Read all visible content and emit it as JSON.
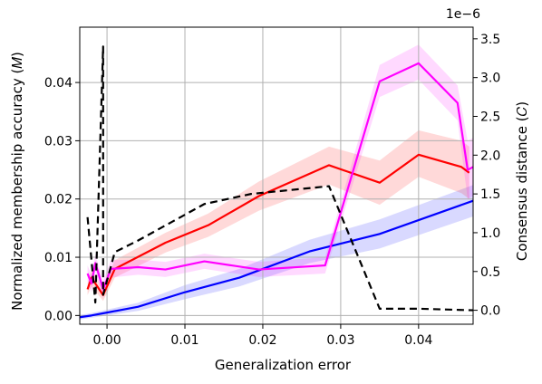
{
  "chart_data": {
    "type": "line",
    "xlabel": "Generalization error",
    "ylabel_left": "Normalized membership accuracy (𝑀)",
    "ylabel_right": "Consensus distance (𝐶)",
    "right_axis_multiplier": "1e−6",
    "xlim": [
      -0.0035,
      0.047
    ],
    "ylim_left": [
      -0.0015,
      0.0495
    ],
    "ylim_right": [
      -1.8e-07,
      3.65e-06
    ],
    "grid": true,
    "x_ticks": [
      {
        "v": 0.0,
        "label": "0.00"
      },
      {
        "v": 0.01,
        "label": "0.01"
      },
      {
        "v": 0.02,
        "label": "0.02"
      },
      {
        "v": 0.03,
        "label": "0.03"
      },
      {
        "v": 0.04,
        "label": "0.04"
      }
    ],
    "y_left_ticks": [
      {
        "v": 0.0,
        "label": "0.00"
      },
      {
        "v": 0.01,
        "label": "0.01"
      },
      {
        "v": 0.02,
        "label": "0.02"
      },
      {
        "v": 0.03,
        "label": "0.03"
      },
      {
        "v": 0.04,
        "label": "0.04"
      }
    ],
    "y_right_ticks": [
      {
        "v": 0.0,
        "label": "0.0"
      },
      {
        "v": 5e-07,
        "label": "0.5"
      },
      {
        "v": 1e-06,
        "label": "1.0"
      },
      {
        "v": 1.5e-06,
        "label": "1.5"
      },
      {
        "v": 2e-06,
        "label": "2.0"
      },
      {
        "v": 2.5e-06,
        "label": "2.5"
      },
      {
        "v": 3e-06,
        "label": "3.0"
      },
      {
        "v": 3.5e-06,
        "label": "3.5"
      }
    ],
    "series": [
      {
        "color": "#0000ff",
        "band_color": "#0000ff",
        "style": "solid",
        "axis": "left",
        "points": [
          {
            "x": -0.0035,
            "y": -0.0003,
            "lo": -0.0007,
            "hi": 0.0001
          },
          {
            "x": -0.002,
            "y": 0.0,
            "lo": -0.0004,
            "hi": 0.0004
          },
          {
            "x": 0.0,
            "y": 0.0005,
            "lo": 0.0,
            "hi": 0.001
          },
          {
            "x": 0.004,
            "y": 0.0015,
            "lo": 0.0008,
            "hi": 0.0022
          },
          {
            "x": 0.01,
            "y": 0.004,
            "lo": 0.0028,
            "hi": 0.0052
          },
          {
            "x": 0.017,
            "y": 0.0065,
            "lo": 0.005,
            "hi": 0.008
          },
          {
            "x": 0.026,
            "y": 0.011,
            "lo": 0.009,
            "hi": 0.013
          },
          {
            "x": 0.035,
            "y": 0.014,
            "lo": 0.0115,
            "hi": 0.0165
          },
          {
            "x": 0.047,
            "y": 0.0197,
            "lo": 0.017,
            "hi": 0.0224
          }
        ]
      },
      {
        "color": "#ff0000",
        "band_color": "#ff0000",
        "style": "solid",
        "axis": "left",
        "points": [
          {
            "x": -0.0025,
            "y": 0.0045,
            "lo": 0.0035,
            "hi": 0.0055
          },
          {
            "x": -0.002,
            "y": 0.0065,
            "lo": 0.005,
            "hi": 0.008
          },
          {
            "x": -0.0005,
            "y": 0.0035,
            "lo": 0.0025,
            "hi": 0.0045
          },
          {
            "x": 0.001,
            "y": 0.008,
            "lo": 0.0065,
            "hi": 0.0095
          },
          {
            "x": 0.0075,
            "y": 0.0125,
            "lo": 0.0108,
            "hi": 0.0142
          },
          {
            "x": 0.013,
            "y": 0.0155,
            "lo": 0.0135,
            "hi": 0.0175
          },
          {
            "x": 0.0195,
            "y": 0.0205,
            "lo": 0.018,
            "hi": 0.023
          },
          {
            "x": 0.0285,
            "y": 0.0258,
            "lo": 0.0225,
            "hi": 0.029
          },
          {
            "x": 0.035,
            "y": 0.0228,
            "lo": 0.019,
            "hi": 0.0266
          },
          {
            "x": 0.04,
            "y": 0.0276,
            "lo": 0.0238,
            "hi": 0.0318
          },
          {
            "x": 0.0455,
            "y": 0.0255,
            "lo": 0.021,
            "hi": 0.03
          },
          {
            "x": 0.0465,
            "y": 0.0245,
            "lo": 0.02,
            "hi": 0.029
          }
        ]
      },
      {
        "color": "#ff00ff",
        "band_color": "#ff00ff",
        "style": "solid",
        "axis": "left",
        "points": [
          {
            "x": -0.0025,
            "y": 0.0072,
            "lo": 0.0058,
            "hi": 0.0086
          },
          {
            "x": -0.002,
            "y": 0.0055,
            "lo": 0.004,
            "hi": 0.007
          },
          {
            "x": -0.0015,
            "y": 0.009,
            "lo": 0.0075,
            "hi": 0.0105
          },
          {
            "x": -0.0005,
            "y": 0.0045,
            "lo": 0.003,
            "hi": 0.006
          },
          {
            "x": 0.0005,
            "y": 0.008,
            "lo": 0.0065,
            "hi": 0.0095
          },
          {
            "x": 0.004,
            "y": 0.0083,
            "lo": 0.007,
            "hi": 0.0096
          },
          {
            "x": 0.0075,
            "y": 0.0079,
            "lo": 0.0066,
            "hi": 0.0092
          },
          {
            "x": 0.0125,
            "y": 0.0093,
            "lo": 0.008,
            "hi": 0.0106
          },
          {
            "x": 0.0195,
            "y": 0.0079,
            "lo": 0.0066,
            "hi": 0.0092
          },
          {
            "x": 0.028,
            "y": 0.0086,
            "lo": 0.0072,
            "hi": 0.01
          },
          {
            "x": 0.035,
            "y": 0.0402,
            "lo": 0.0375,
            "hi": 0.043
          },
          {
            "x": 0.04,
            "y": 0.0433,
            "lo": 0.0405,
            "hi": 0.0465
          },
          {
            "x": 0.045,
            "y": 0.0365,
            "lo": 0.0335,
            "hi": 0.0395
          },
          {
            "x": 0.0463,
            "y": 0.025,
            "lo": 0.02,
            "hi": 0.03
          },
          {
            "x": 0.047,
            "y": 0.0255,
            "lo": 0.0205,
            "hi": 0.0305
          }
        ]
      },
      {
        "color": "#000000",
        "style": "dashed",
        "axis": "right",
        "points": [
          {
            "x": -0.0025,
            "y": 1.2e-06
          },
          {
            "x": -0.0015,
            "y": 1e-07
          },
          {
            "x": -0.0005,
            "y": 3.4e-06
          },
          {
            "x": -0.0005,
            "y": 2e-07
          },
          {
            "x": 0.001,
            "y": 7.5e-07
          },
          {
            "x": 0.004,
            "y": 9e-07
          },
          {
            "x": 0.0125,
            "y": 1.37e-06
          },
          {
            "x": 0.0185,
            "y": 1.5e-06
          },
          {
            "x": 0.0285,
            "y": 1.6e-06
          },
          {
            "x": 0.035,
            "y": 2e-08
          },
          {
            "x": 0.04,
            "y": 2e-08
          },
          {
            "x": 0.047,
            "y": 0.0
          }
        ]
      }
    ]
  }
}
